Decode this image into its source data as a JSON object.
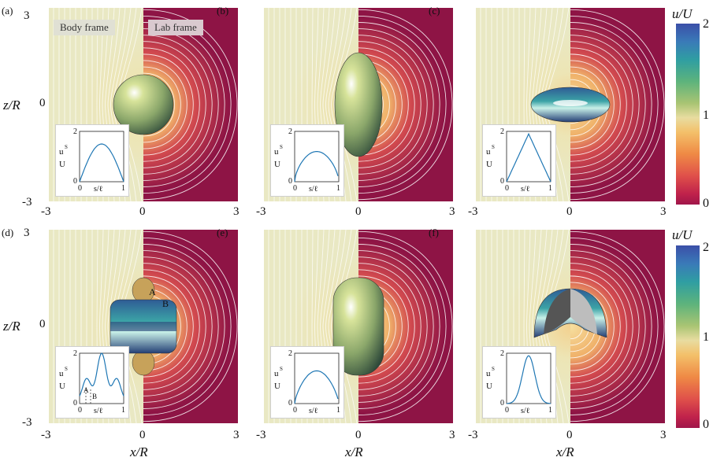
{
  "panels": [
    {
      "label": "(a)",
      "shape": "sphere"
    },
    {
      "label": "(b)",
      "shape": "prolate"
    },
    {
      "label": "(c)",
      "shape": "oblate"
    },
    {
      "label": "(d)",
      "shape": "wavy"
    },
    {
      "label": "(e)",
      "shape": "capsule"
    },
    {
      "label": "(f)",
      "shape": "cap"
    }
  ],
  "frames": {
    "body": "Body frame",
    "lab": "Lab frame"
  },
  "axes": {
    "x_label": "x/R",
    "z_label": "z/R",
    "ticks_neg": "-3",
    "ticks_zero": "0",
    "ticks_pos": "3"
  },
  "inset": {
    "y_label_top": "u",
    "y_label_sup": "S",
    "y_label_bottom": "U",
    "x_label": "s/ℓ",
    "y_max": "2",
    "y_min": "0",
    "x_min": "0",
    "x_max": "1"
  },
  "points": {
    "A": "A",
    "B": "B"
  },
  "colorbar": {
    "title": "u/U",
    "ticks": [
      "2",
      "1",
      "0"
    ]
  },
  "colors": {
    "lab_bg": "#8e1445",
    "body_bg": "#e9e8c3",
    "stream": "#ffffff",
    "curve": "#1f77b4"
  }
}
